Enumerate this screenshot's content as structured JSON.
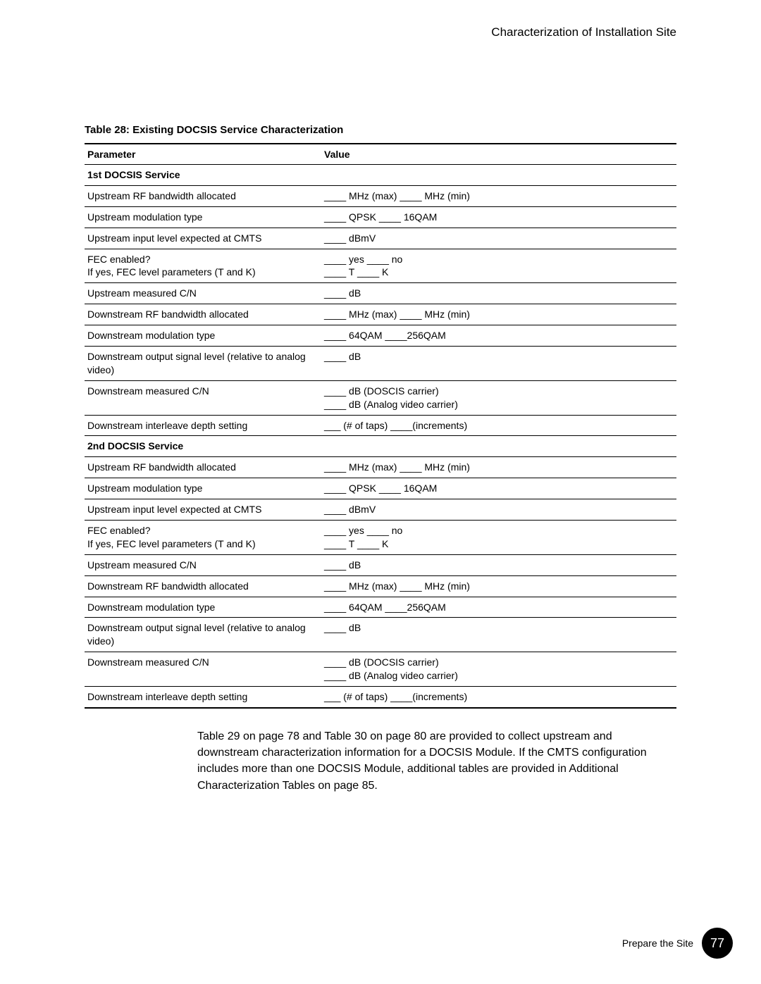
{
  "header": {
    "section_title": "Characterization of Installation Site"
  },
  "table": {
    "caption": "Table 28:  Existing DOCSIS Service Characterization",
    "columns": {
      "parameter": "Parameter",
      "value": "Value"
    },
    "section1_label": "1st DOCSIS Service",
    "section2_label": "2nd DOCSIS Service",
    "rows": {
      "s1r1p": "Upstream RF bandwidth allocated",
      "s1r1v": "____ MHz (max) ____ MHz (min)",
      "s1r2p": "Upstream modulation type",
      "s1r2v": "____ QPSK ____ 16QAM",
      "s1r3p": "Upstream input level expected at CMTS",
      "s1r3v": "____ dBmV",
      "s1r4p": "FEC enabled?\nIf yes, FEC level parameters (T and K)",
      "s1r4v": "____ yes ____ no\n____ T ____ K",
      "s1r5p": "Upstream measured C/N",
      "s1r5v": "____ dB",
      "s1r6p": "Downstream RF bandwidth allocated",
      "s1r6v": "____ MHz (max) ____ MHz (min)",
      "s1r7p": "Downstream modulation type",
      "s1r7v": "____ 64QAM ____256QAM",
      "s1r8p": "Downstream output signal level (relative to analog video)",
      "s1r8v": "____ dB",
      "s1r9p": "Downstream measured C/N",
      "s1r9v": "____ dB (DOSCIS carrier)\n____ dB (Analog video carrier)",
      "s1r10p": "Downstream interleave depth setting",
      "s1r10v": "___ (# of taps) ____(increments)",
      "s2r1p": "Upstream RF bandwidth allocated",
      "s2r1v": "____ MHz (max) ____ MHz (min)",
      "s2r2p": "Upstream modulation type",
      "s2r2v": "____ QPSK ____ 16QAM",
      "s2r3p": "Upstream input level expected at CMTS",
      "s2r3v": "____ dBmV",
      "s2r4p": "FEC enabled?\nIf yes, FEC level parameters (T and K)",
      "s2r4v": "____ yes ____ no\n____ T ____ K",
      "s2r5p": "Upstream measured C/N",
      "s2r5v": "____ dB",
      "s2r6p": "Downstream RF bandwidth allocated",
      "s2r6v": "____ MHz (max) ____ MHz (min)",
      "s2r7p": "Downstream modulation type",
      "s2r7v": "____ 64QAM ____256QAM",
      "s2r8p": "Downstream output signal level (relative to analog video)",
      "s2r8v": "____ dB",
      "s2r9p": "Downstream measured C/N",
      "s2r9v": "____ dB (DOCSIS carrier)\n____ dB (Analog video carrier)",
      "s2r10p": "Downstream interleave depth setting",
      "s2r10v": "___ (# of taps) ____(increments)"
    }
  },
  "body_paragraph": "Table 29 on page 78 and Table 30 on page 80 are provided to collect upstream and downstream characterization information for a DOCSIS Module. If the CMTS configuration includes more than one DOCSIS Module, additional tables are provided in  Additional Characterization Tables  on page 85.",
  "footer": {
    "label": "Prepare the Site",
    "page_number": "77"
  }
}
